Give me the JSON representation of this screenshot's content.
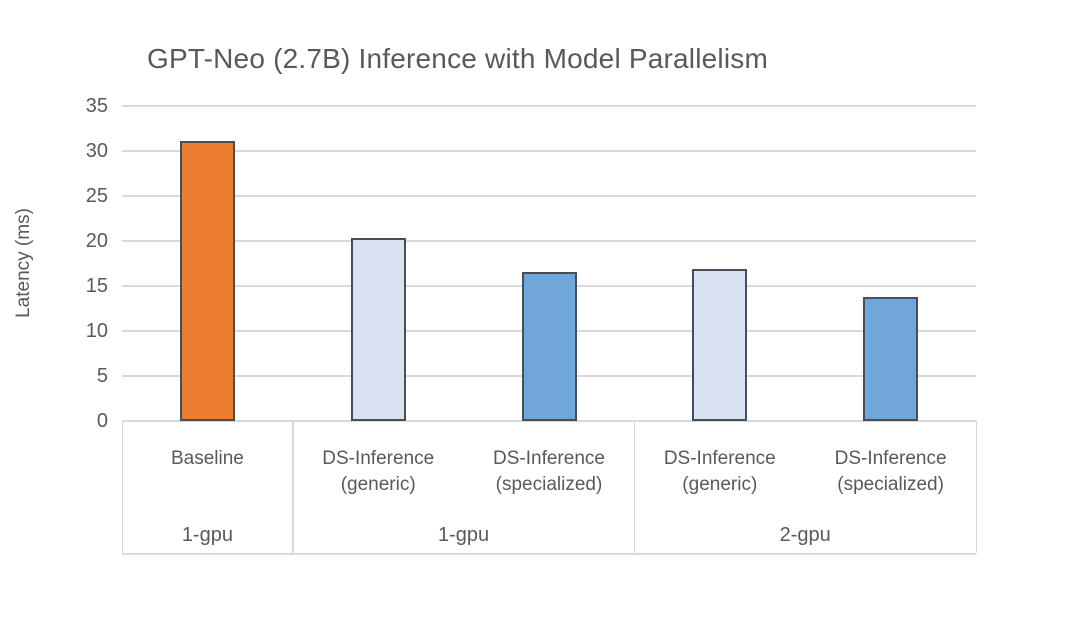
{
  "chart_data": {
    "type": "bar",
    "title": "GPT-Neo (2.7B) Inference with Model Parallelism",
    "xlabel": "",
    "ylabel": "Latency (ms)",
    "ylim": [
      0,
      35
    ],
    "yticks": [
      0,
      5,
      10,
      15,
      20,
      25,
      30,
      35
    ],
    "grid": true,
    "legend": "none",
    "groups": [
      {
        "group_label": "1-gpu",
        "bars": [
          {
            "label": "Baseline",
            "value": 31.1,
            "color": "#ED7D31"
          }
        ]
      },
      {
        "group_label": "1-gpu",
        "bars": [
          {
            "label": "DS-Inference (generic)",
            "value": 20.3,
            "color": "#D9E2F3"
          },
          {
            "label": "DS-Inference (specialized)",
            "value": 16.6,
            "color": "#6FA7DB"
          }
        ]
      },
      {
        "group_label": "2-gpu",
        "bars": [
          {
            "label": "DS-Inference (generic)",
            "value": 16.9,
            "color": "#D9E2F3"
          },
          {
            "label": "DS-Inference (specialized)",
            "value": 13.8,
            "color": "#6FA7DB"
          }
        ]
      }
    ],
    "colors": {
      "bar_border": "#464E59",
      "gridline": "#D9D9D9",
      "axis_table_border": "#D9D9D9",
      "text": "#595959",
      "background": "#FFFFFF"
    }
  }
}
